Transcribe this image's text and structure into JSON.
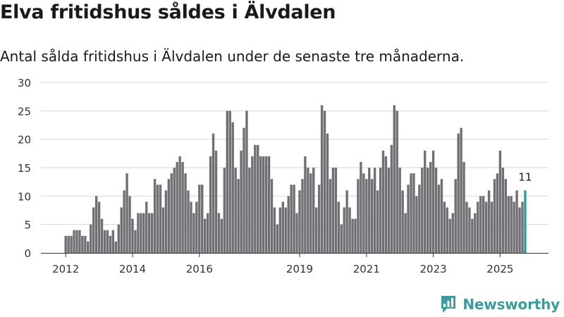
{
  "header": {
    "title": "Elva fritidshus såldes i Älvdalen",
    "subtitle": "Antal sålda fritidshus i Älvdalen under de senaste tre månaderna."
  },
  "brand": {
    "name": "Newsworthy",
    "logo_icon": "newsworthy-chart-logo-icon",
    "color": "#3e9a9b"
  },
  "chart_data": {
    "type": "bar",
    "x_start": "2012-01",
    "x_step": "month",
    "values": [
      3,
      3,
      3,
      4,
      4,
      4,
      3,
      3,
      2,
      5,
      8,
      10,
      9,
      6,
      4,
      4,
      3,
      4,
      2,
      5,
      8,
      11,
      14,
      10,
      6,
      4,
      7,
      7,
      7,
      9,
      7,
      7,
      13,
      12,
      12,
      8,
      11,
      13,
      14,
      15,
      16,
      17,
      16,
      14,
      11,
      9,
      7,
      9,
      12,
      12,
      6,
      7,
      17,
      21,
      18,
      7,
      6,
      15,
      25,
      25,
      23,
      15,
      13,
      18,
      22,
      25,
      15,
      17,
      19,
      19,
      17,
      17,
      17,
      17,
      13,
      8,
      5,
      8,
      9,
      8,
      10,
      12,
      12,
      7,
      11,
      13,
      17,
      15,
      14,
      15,
      8,
      12,
      26,
      25,
      21,
      13,
      15,
      15,
      9,
      5,
      8,
      11,
      8,
      6,
      6,
      13,
      16,
      14,
      13,
      15,
      13,
      15,
      11,
      15,
      18,
      17,
      15,
      19,
      26,
      25,
      15,
      11,
      7,
      12,
      14,
      14,
      10,
      12,
      15,
      18,
      15,
      16,
      18,
      15,
      12,
      13,
      9,
      8,
      6,
      7,
      13,
      21,
      22,
      16,
      9,
      8,
      6,
      7,
      9,
      10,
      10,
      9,
      11,
      9,
      13,
      14,
      18,
      15,
      13,
      10,
      10,
      9,
      11,
      8,
      9,
      11
    ],
    "x_ticks": [
      "2012",
      "2014",
      "2016",
      "2019",
      "2021",
      "2023",
      "2025"
    ],
    "y_ticks": [
      0,
      5,
      10,
      15,
      20,
      25,
      30
    ],
    "ylim": [
      0,
      30
    ],
    "grid": true,
    "bar_color": "#707074",
    "highlight_color": "#2f9e9a",
    "highlight_index": 165,
    "highlight_label": "11"
  }
}
